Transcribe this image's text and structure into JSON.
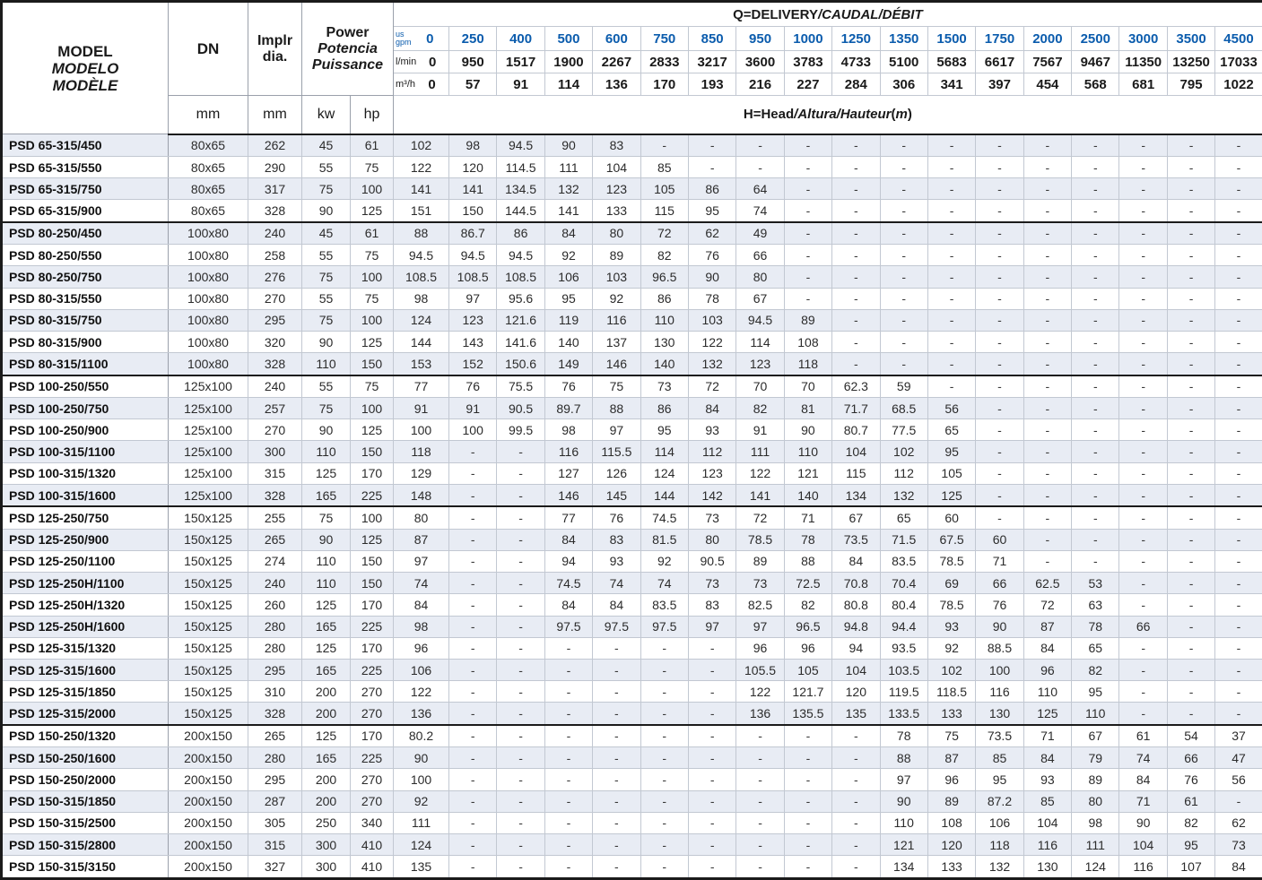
{
  "table": {
    "model_header": {
      "en": "MODEL",
      "es": "MODELO",
      "fr": "MODÈLE"
    },
    "dn_header": "DN",
    "implr_header": {
      "line1": "Implr",
      "line2": "dia."
    },
    "power_header": {
      "en": "Power",
      "es": "Potencia",
      "fr": "Puissance"
    },
    "units": {
      "dn": "mm",
      "implr": "mm",
      "kw": "kw",
      "hp": "hp"
    },
    "q_title": {
      "main": "Q=DELIVERY",
      "alt": "/CAUDAL/DÉBIT"
    },
    "h_title": {
      "main": "H=Head",
      "alt": "/Altura/Hauteur",
      "paren_open": "(",
      "unit": "m",
      "paren_close": ")"
    },
    "flow_labels": {
      "gpm_line1": "us",
      "gpm_line2": "gpm",
      "lmin": "l/min",
      "m3h": "m³/h"
    },
    "flow_rows": {
      "us_gpm": [
        "0",
        "250",
        "400",
        "500",
        "600",
        "750",
        "850",
        "950",
        "1000",
        "1250",
        "1350",
        "1500",
        "1750",
        "2000",
        "2500",
        "3000",
        "3500",
        "4500"
      ],
      "l_min": [
        "0",
        "950",
        "1517",
        "1900",
        "2267",
        "2833",
        "3217",
        "3600",
        "3783",
        "4733",
        "5100",
        "5683",
        "6617",
        "7567",
        "9467",
        "11350",
        "13250",
        "17033"
      ],
      "m3_h": [
        "0",
        "57",
        "91",
        "114",
        "136",
        "170",
        "193",
        "216",
        "227",
        "284",
        "306",
        "341",
        "397",
        "454",
        "568",
        "681",
        "795",
        "1022"
      ]
    },
    "colors": {
      "accent_blue": "#0b5cad",
      "stripe": "#e8ecf4"
    },
    "rows": [
      {
        "model": "PSD 65-315/450",
        "dn": "80x65",
        "implr": "262",
        "kw": "45",
        "hp": "61",
        "heads": [
          "102",
          "98",
          "94.5",
          "90",
          "83",
          "-",
          "-",
          "-",
          "-",
          "-",
          "-",
          "-",
          "-",
          "-",
          "-",
          "-",
          "-",
          "-"
        ]
      },
      {
        "model": "PSD 65-315/550",
        "dn": "80x65",
        "implr": "290",
        "kw": "55",
        "hp": "75",
        "heads": [
          "122",
          "120",
          "114.5",
          "111",
          "104",
          "85",
          "-",
          "-",
          "-",
          "-",
          "-",
          "-",
          "-",
          "-",
          "-",
          "-",
          "-",
          "-"
        ]
      },
      {
        "model": "PSD 65-315/750",
        "dn": "80x65",
        "implr": "317",
        "kw": "75",
        "hp": "100",
        "heads": [
          "141",
          "141",
          "134.5",
          "132",
          "123",
          "105",
          "86",
          "64",
          "-",
          "-",
          "-",
          "-",
          "-",
          "-",
          "-",
          "-",
          "-",
          "-"
        ]
      },
      {
        "model": "PSD 65-315/900",
        "dn": "80x65",
        "implr": "328",
        "kw": "90",
        "hp": "125",
        "heads": [
          "151",
          "150",
          "144.5",
          "141",
          "133",
          "115",
          "95",
          "74",
          "-",
          "-",
          "-",
          "-",
          "-",
          "-",
          "-",
          "-",
          "-",
          "-"
        ]
      },
      {
        "model": "PSD 80-250/450",
        "dn": "100x80",
        "implr": "240",
        "kw": "45",
        "hp": "61",
        "sep": true,
        "heads": [
          "88",
          "86.7",
          "86",
          "84",
          "80",
          "72",
          "62",
          "49",
          "-",
          "-",
          "-",
          "-",
          "-",
          "-",
          "-",
          "-",
          "-",
          "-"
        ]
      },
      {
        "model": "PSD 80-250/550",
        "dn": "100x80",
        "implr": "258",
        "kw": "55",
        "hp": "75",
        "heads": [
          "94.5",
          "94.5",
          "94.5",
          "92",
          "89",
          "82",
          "76",
          "66",
          "-",
          "-",
          "-",
          "-",
          "-",
          "-",
          "-",
          "-",
          "-",
          "-"
        ]
      },
      {
        "model": "PSD 80-250/750",
        "dn": "100x80",
        "implr": "276",
        "kw": "75",
        "hp": "100",
        "heads": [
          "108.5",
          "108.5",
          "108.5",
          "106",
          "103",
          "96.5",
          "90",
          "80",
          "-",
          "-",
          "-",
          "-",
          "-",
          "-",
          "-",
          "-",
          "-",
          "-"
        ]
      },
      {
        "model": "PSD 80-315/550",
        "dn": "100x80",
        "implr": "270",
        "kw": "55",
        "hp": "75",
        "heads": [
          "98",
          "97",
          "95.6",
          "95",
          "92",
          "86",
          "78",
          "67",
          "-",
          "-",
          "-",
          "-",
          "-",
          "-",
          "-",
          "-",
          "-",
          "-"
        ]
      },
      {
        "model": "PSD 80-315/750",
        "dn": "100x80",
        "implr": "295",
        "kw": "75",
        "hp": "100",
        "heads": [
          "124",
          "123",
          "121.6",
          "119",
          "116",
          "110",
          "103",
          "94.5",
          "89",
          "-",
          "-",
          "-",
          "-",
          "-",
          "-",
          "-",
          "-",
          "-"
        ]
      },
      {
        "model": "PSD 80-315/900",
        "dn": "100x80",
        "implr": "320",
        "kw": "90",
        "hp": "125",
        "heads": [
          "144",
          "143",
          "141.6",
          "140",
          "137",
          "130",
          "122",
          "114",
          "108",
          "-",
          "-",
          "-",
          "-",
          "-",
          "-",
          "-",
          "-",
          "-"
        ]
      },
      {
        "model": "PSD 80-315/1100",
        "dn": "100x80",
        "implr": "328",
        "kw": "110",
        "hp": "150",
        "heads": [
          "153",
          "152",
          "150.6",
          "149",
          "146",
          "140",
          "132",
          "123",
          "118",
          "-",
          "-",
          "-",
          "-",
          "-",
          "-",
          "-",
          "-",
          "-"
        ]
      },
      {
        "model": "PSD 100-250/550",
        "dn": "125x100",
        "implr": "240",
        "kw": "55",
        "hp": "75",
        "sep": true,
        "heads": [
          "77",
          "76",
          "75.5",
          "76",
          "75",
          "73",
          "72",
          "70",
          "70",
          "62.3",
          "59",
          "-",
          "-",
          "-",
          "-",
          "-",
          "-",
          "-"
        ]
      },
      {
        "model": "PSD 100-250/750",
        "dn": "125x100",
        "implr": "257",
        "kw": "75",
        "hp": "100",
        "heads": [
          "91",
          "91",
          "90.5",
          "89.7",
          "88",
          "86",
          "84",
          "82",
          "81",
          "71.7",
          "68.5",
          "56",
          "-",
          "-",
          "-",
          "-",
          "-",
          "-"
        ]
      },
      {
        "model": "PSD 100-250/900",
        "dn": "125x100",
        "implr": "270",
        "kw": "90",
        "hp": "125",
        "heads": [
          "100",
          "100",
          "99.5",
          "98",
          "97",
          "95",
          "93",
          "91",
          "90",
          "80.7",
          "77.5",
          "65",
          "-",
          "-",
          "-",
          "-",
          "-",
          "-"
        ]
      },
      {
        "model": "PSD 100-315/1100",
        "dn": "125x100",
        "implr": "300",
        "kw": "110",
        "hp": "150",
        "heads": [
          "118",
          "-",
          "-",
          "116",
          "115.5",
          "114",
          "112",
          "111",
          "110",
          "104",
          "102",
          "95",
          "-",
          "-",
          "-",
          "-",
          "-",
          "-"
        ]
      },
      {
        "model": "PSD 100-315/1320",
        "dn": "125x100",
        "implr": "315",
        "kw": "125",
        "hp": "170",
        "heads": [
          "129",
          "-",
          "-",
          "127",
          "126",
          "124",
          "123",
          "122",
          "121",
          "115",
          "112",
          "105",
          "-",
          "-",
          "-",
          "-",
          "-",
          "-"
        ]
      },
      {
        "model": "PSD 100-315/1600",
        "dn": "125x100",
        "implr": "328",
        "kw": "165",
        "hp": "225",
        "heads": [
          "148",
          "-",
          "-",
          "146",
          "145",
          "144",
          "142",
          "141",
          "140",
          "134",
          "132",
          "125",
          "-",
          "-",
          "-",
          "-",
          "-",
          "-"
        ]
      },
      {
        "model": "PSD 125-250/750",
        "dn": "150x125",
        "implr": "255",
        "kw": "75",
        "hp": "100",
        "sep": true,
        "heads": [
          "80",
          "-",
          "-",
          "77",
          "76",
          "74.5",
          "73",
          "72",
          "71",
          "67",
          "65",
          "60",
          "-",
          "-",
          "-",
          "-",
          "-",
          "-"
        ]
      },
      {
        "model": "PSD 125-250/900",
        "dn": "150x125",
        "implr": "265",
        "kw": "90",
        "hp": "125",
        "heads": [
          "87",
          "-",
          "-",
          "84",
          "83",
          "81.5",
          "80",
          "78.5",
          "78",
          "73.5",
          "71.5",
          "67.5",
          "60",
          "-",
          "-",
          "-",
          "-",
          "-"
        ]
      },
      {
        "model": "PSD 125-250/1100",
        "dn": "150x125",
        "implr": "274",
        "kw": "110",
        "hp": "150",
        "heads": [
          "97",
          "-",
          "-",
          "94",
          "93",
          "92",
          "90.5",
          "89",
          "88",
          "84",
          "83.5",
          "78.5",
          "71",
          "-",
          "-",
          "-",
          "-",
          "-"
        ]
      },
      {
        "model": "PSD 125-250H/1100",
        "dn": "150x125",
        "implr": "240",
        "kw": "110",
        "hp": "150",
        "heads": [
          "74",
          "-",
          "-",
          "74.5",
          "74",
          "74",
          "73",
          "73",
          "72.5",
          "70.8",
          "70.4",
          "69",
          "66",
          "62.5",
          "53",
          "-",
          "-",
          "-"
        ]
      },
      {
        "model": "PSD 125-250H/1320",
        "dn": "150x125",
        "implr": "260",
        "kw": "125",
        "hp": "170",
        "heads": [
          "84",
          "-",
          "-",
          "84",
          "84",
          "83.5",
          "83",
          "82.5",
          "82",
          "80.8",
          "80.4",
          "78.5",
          "76",
          "72",
          "63",
          "-",
          "-",
          "-"
        ]
      },
      {
        "model": "PSD 125-250H/1600",
        "dn": "150x125",
        "implr": "280",
        "kw": "165",
        "hp": "225",
        "heads": [
          "98",
          "-",
          "-",
          "97.5",
          "97.5",
          "97.5",
          "97",
          "97",
          "96.5",
          "94.8",
          "94.4",
          "93",
          "90",
          "87",
          "78",
          "66",
          "-",
          "-"
        ]
      },
      {
        "model": "PSD 125-315/1320",
        "dn": "150x125",
        "implr": "280",
        "kw": "125",
        "hp": "170",
        "heads": [
          "96",
          "-",
          "-",
          "-",
          "-",
          "-",
          "-",
          "96",
          "96",
          "94",
          "93.5",
          "92",
          "88.5",
          "84",
          "65",
          "-",
          "-",
          "-"
        ]
      },
      {
        "model": "PSD 125-315/1600",
        "dn": "150x125",
        "implr": "295",
        "kw": "165",
        "hp": "225",
        "heads": [
          "106",
          "-",
          "-",
          "-",
          "-",
          "-",
          "-",
          "105.5",
          "105",
          "104",
          "103.5",
          "102",
          "100",
          "96",
          "82",
          "-",
          "-",
          "-"
        ]
      },
      {
        "model": "PSD 125-315/1850",
        "dn": "150x125",
        "implr": "310",
        "kw": "200",
        "hp": "270",
        "heads": [
          "122",
          "-",
          "-",
          "-",
          "-",
          "-",
          "-",
          "122",
          "121.7",
          "120",
          "119.5",
          "118.5",
          "116",
          "110",
          "95",
          "-",
          "-",
          "-"
        ]
      },
      {
        "model": "PSD 125-315/2000",
        "dn": "150x125",
        "implr": "328",
        "kw": "200",
        "hp": "270",
        "heads": [
          "136",
          "-",
          "-",
          "-",
          "-",
          "-",
          "-",
          "136",
          "135.5",
          "135",
          "133.5",
          "133",
          "130",
          "125",
          "110",
          "-",
          "-",
          "-"
        ]
      },
      {
        "model": "PSD 150-250/1320",
        "dn": "200x150",
        "implr": "265",
        "kw": "125",
        "hp": "170",
        "sep": true,
        "heads": [
          "80.2",
          "-",
          "-",
          "-",
          "-",
          "-",
          "-",
          "-",
          "-",
          "-",
          "78",
          "75",
          "73.5",
          "71",
          "67",
          "61",
          "54",
          "37"
        ]
      },
      {
        "model": "PSD 150-250/1600",
        "dn": "200x150",
        "implr": "280",
        "kw": "165",
        "hp": "225",
        "heads": [
          "90",
          "-",
          "-",
          "-",
          "-",
          "-",
          "-",
          "-",
          "-",
          "-",
          "88",
          "87",
          "85",
          "84",
          "79",
          "74",
          "66",
          "47"
        ]
      },
      {
        "model": "PSD 150-250/2000",
        "dn": "200x150",
        "implr": "295",
        "kw": "200",
        "hp": "270",
        "heads": [
          "100",
          "-",
          "-",
          "-",
          "-",
          "-",
          "-",
          "-",
          "-",
          "-",
          "97",
          "96",
          "95",
          "93",
          "89",
          "84",
          "76",
          "56"
        ]
      },
      {
        "model": "PSD 150-315/1850",
        "dn": "200x150",
        "implr": "287",
        "kw": "200",
        "hp": "270",
        "heads": [
          "92",
          "-",
          "-",
          "-",
          "-",
          "-",
          "-",
          "-",
          "-",
          "-",
          "90",
          "89",
          "87.2",
          "85",
          "80",
          "71",
          "61",
          "-"
        ]
      },
      {
        "model": "PSD 150-315/2500",
        "dn": "200x150",
        "implr": "305",
        "kw": "250",
        "hp": "340",
        "heads": [
          "111",
          "-",
          "-",
          "-",
          "-",
          "-",
          "-",
          "-",
          "-",
          "-",
          "110",
          "108",
          "106",
          "104",
          "98",
          "90",
          "82",
          "62"
        ]
      },
      {
        "model": "PSD 150-315/2800",
        "dn": "200x150",
        "implr": "315",
        "kw": "300",
        "hp": "410",
        "heads": [
          "124",
          "-",
          "-",
          "-",
          "-",
          "-",
          "-",
          "-",
          "-",
          "-",
          "121",
          "120",
          "118",
          "116",
          "111",
          "104",
          "95",
          "73"
        ]
      },
      {
        "model": "PSD 150-315/3150",
        "dn": "200x150",
        "implr": "327",
        "kw": "300",
        "hp": "410",
        "heads": [
          "135",
          "-",
          "-",
          "-",
          "-",
          "-",
          "-",
          "-",
          "-",
          "-",
          "134",
          "133",
          "132",
          "130",
          "124",
          "116",
          "107",
          "84"
        ]
      }
    ]
  }
}
